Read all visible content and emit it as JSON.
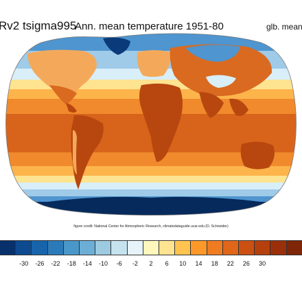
{
  "titles": {
    "left": "Rv2 tsigma995",
    "main": "Ann. mean temperature 1951-80",
    "right": "glb. mean"
  },
  "credit": "figure credit: National Center for Atmospheric Research, climatedataguide.ucar.edu (D. Schneider)",
  "colorbar": {
    "colors": [
      "#08306b",
      "#0d4a8f",
      "#1764ab",
      "#2b7bba",
      "#4a98c9",
      "#6baed6",
      "#9ccae1",
      "#c6e2ef",
      "#e6f3f9",
      "#fff7bc",
      "#fee391",
      "#fec44f",
      "#fe9929",
      "#f07c22",
      "#e0661a",
      "#cc5012",
      "#b5400d",
      "#9a300a",
      "#7f2508"
    ],
    "tick_labels": [
      "-30",
      "-26",
      "-22",
      "-18",
      "-14",
      "-10",
      "-6",
      "-2",
      "2",
      "6",
      "10",
      "14",
      "18",
      "22",
      "26",
      "30"
    ]
  },
  "map_colors": {
    "ocean_polar": "#0b3a7a",
    "ocean_cold": "#4f95cf",
    "ocean_cool": "#9fcbe8",
    "ocean_mild": "#d8eef8",
    "ocean_warm": "#fee391",
    "ocean_warmer": "#fdb44b",
    "ocean_tropical": "#f08a2c",
    "ocean_hot": "#d8641b",
    "land_hot": "#b8470f",
    "land_warm": "#d96a20",
    "land_cool": "#f4a95a",
    "ice": "#eaf6fc",
    "antarctica": "#062a5c",
    "coast": "#5a5a5a"
  }
}
